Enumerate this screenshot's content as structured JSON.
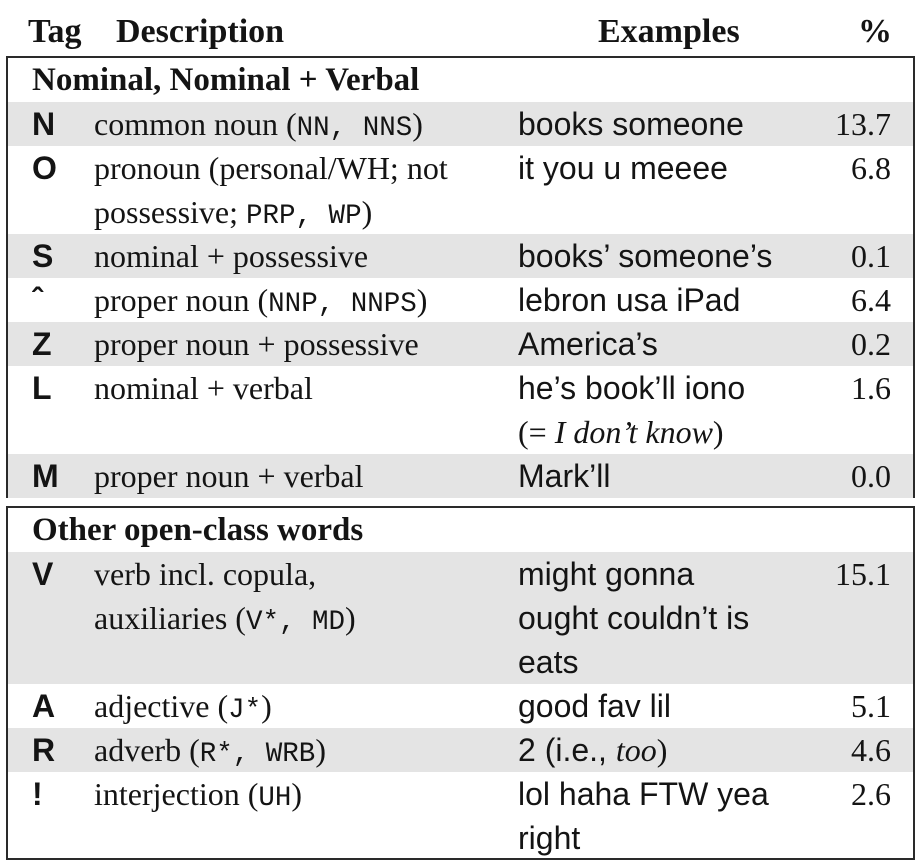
{
  "header": {
    "tag": "Tag",
    "description": "Description",
    "examples": "Examples",
    "percent": "%"
  },
  "sections": [
    {
      "title": "Nominal, Nominal + Verbal",
      "rows": [
        {
          "tag": "N",
          "desc_text": "common noun (",
          "desc_code": "NN, NNS",
          "desc_end": ")",
          "examples": "books someone",
          "pct": "13.7"
        },
        {
          "tag": "O",
          "desc_line1": "pronoun (personal/WH; not",
          "desc_line2_text": "possessive; ",
          "desc_line2_code": "PRP, WP",
          "desc_line2_end": ")",
          "examples": "it you u meeee",
          "pct": "6.8"
        },
        {
          "tag": "S",
          "desc_text": "nominal + possessive",
          "examples": "books’ someone’s",
          "pct": "0.1"
        },
        {
          "tag": "ˆ",
          "desc_text": "proper noun (",
          "desc_code": "NNP, NNPS",
          "desc_end": ")",
          "examples": "lebron usa iPad",
          "pct": "6.4"
        },
        {
          "tag": "Z",
          "desc_text": "proper noun + possessive",
          "examples": "America’s",
          "pct": "0.2"
        },
        {
          "tag": "L",
          "desc_text": "nominal + verbal",
          "examples": "he’s book’ll iono",
          "examples_line2_open": "(= ",
          "examples_line2_italic": "I don’t know",
          "examples_line2_close": ")",
          "pct": "1.6"
        },
        {
          "tag": "M",
          "desc_text": "proper noun + verbal",
          "examples": "Mark’ll",
          "pct": "0.0"
        }
      ]
    },
    {
      "title": "Other open-class words",
      "rows": [
        {
          "tag": "V",
          "desc_line1": "verb incl. copula,",
          "desc_line2_text": "auxiliaries (",
          "desc_line2_code": "V*, MD",
          "desc_line2_end": ")",
          "examples_line1": "might gonna",
          "examples_line2": "ought couldn’t is",
          "examples_line3": "eats",
          "pct": "15.1"
        },
        {
          "tag": "A",
          "desc_text": "adjective (",
          "desc_code": "J*",
          "desc_end": ")",
          "examples": "good fav lil",
          "pct": "5.1"
        },
        {
          "tag": "R",
          "desc_text": "adverb (",
          "desc_code": "R*, WRB",
          "desc_end": ")",
          "examples_pre": "2 (i.e., ",
          "examples_italic": "too",
          "examples_post": ")",
          "pct": "4.6"
        },
        {
          "tag": "!",
          "desc_text": "interjection (",
          "desc_code": "UH",
          "desc_end": ")",
          "examples_line1": "lol haha FTW yea",
          "examples_line2": "right",
          "pct": "2.6"
        }
      ]
    }
  ]
}
